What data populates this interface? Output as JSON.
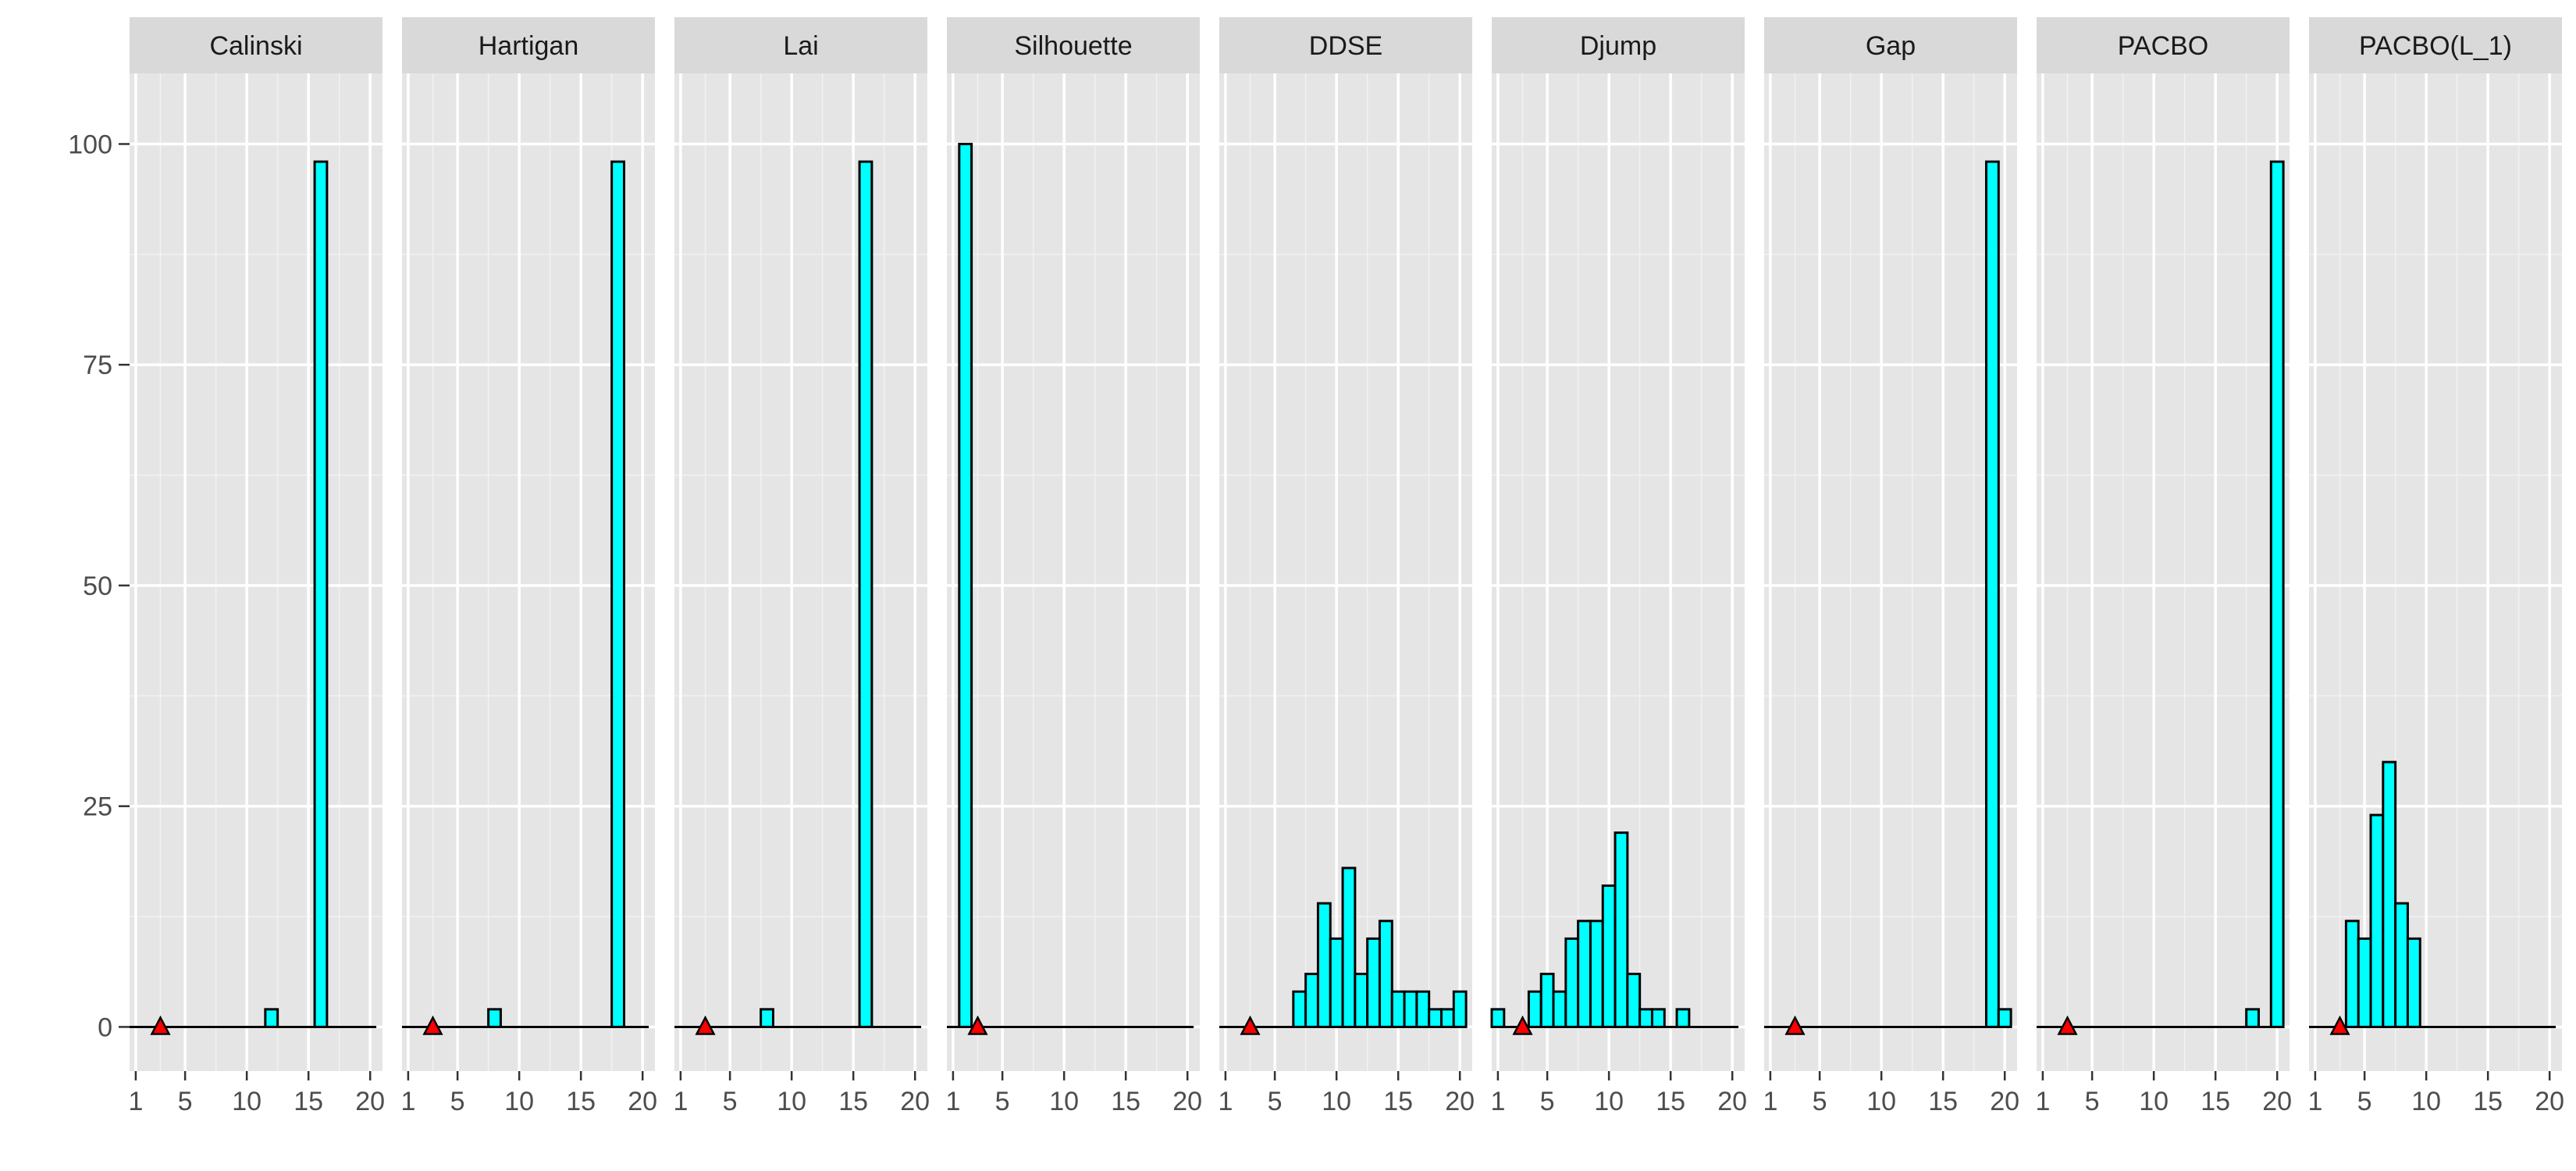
{
  "chart_data": {
    "type": "bar",
    "title": "",
    "xlabel": "",
    "ylabel": "",
    "xlim": [
      0.5,
      21
    ],
    "ylim": [
      -5,
      108
    ],
    "x_ticks": [
      1,
      5,
      10,
      15,
      20
    ],
    "y_ticks": [
      0,
      25,
      50,
      75,
      100
    ],
    "grid": true,
    "bar_color": "#00FFFF",
    "bar_outline": "#000000",
    "marker_color": "#FF0000",
    "panel_background": "#E5E5E5",
    "strip_background": "#D9D9D9",
    "marker_x": 3,
    "panels": [
      {
        "label": "Calinski",
        "x": [
          12,
          16
        ],
        "values": [
          2,
          98
        ]
      },
      {
        "label": "Hartigan",
        "x": [
          8,
          18
        ],
        "values": [
          2,
          98
        ]
      },
      {
        "label": "Lai",
        "x": [
          8,
          16
        ],
        "values": [
          2,
          98
        ]
      },
      {
        "label": "Silhouette",
        "x": [
          2
        ],
        "values": [
          100
        ]
      },
      {
        "label": "DDSE",
        "x": [
          7,
          8,
          9,
          10,
          11,
          12,
          13,
          14,
          15,
          16,
          17,
          18,
          19,
          20
        ],
        "values": [
          4,
          6,
          14,
          10,
          18,
          6,
          10,
          12,
          4,
          4,
          4,
          2,
          2,
          4
        ]
      },
      {
        "label": "Djump",
        "x": [
          1,
          4,
          5,
          6,
          7,
          8,
          9,
          10,
          11,
          12,
          13,
          14,
          16
        ],
        "values": [
          2,
          4,
          6,
          4,
          10,
          12,
          12,
          16,
          22,
          6,
          2,
          2,
          2
        ]
      },
      {
        "label": "Gap",
        "x": [
          19,
          20
        ],
        "values": [
          98,
          2
        ]
      },
      {
        "label": "PACBO",
        "x": [
          18,
          20
        ],
        "values": [
          2,
          98
        ]
      },
      {
        "label": "PACBO(L_1)",
        "x": [
          4,
          5,
          6,
          7,
          8,
          9
        ],
        "values": [
          12,
          10,
          24,
          30,
          14,
          10
        ]
      }
    ]
  }
}
